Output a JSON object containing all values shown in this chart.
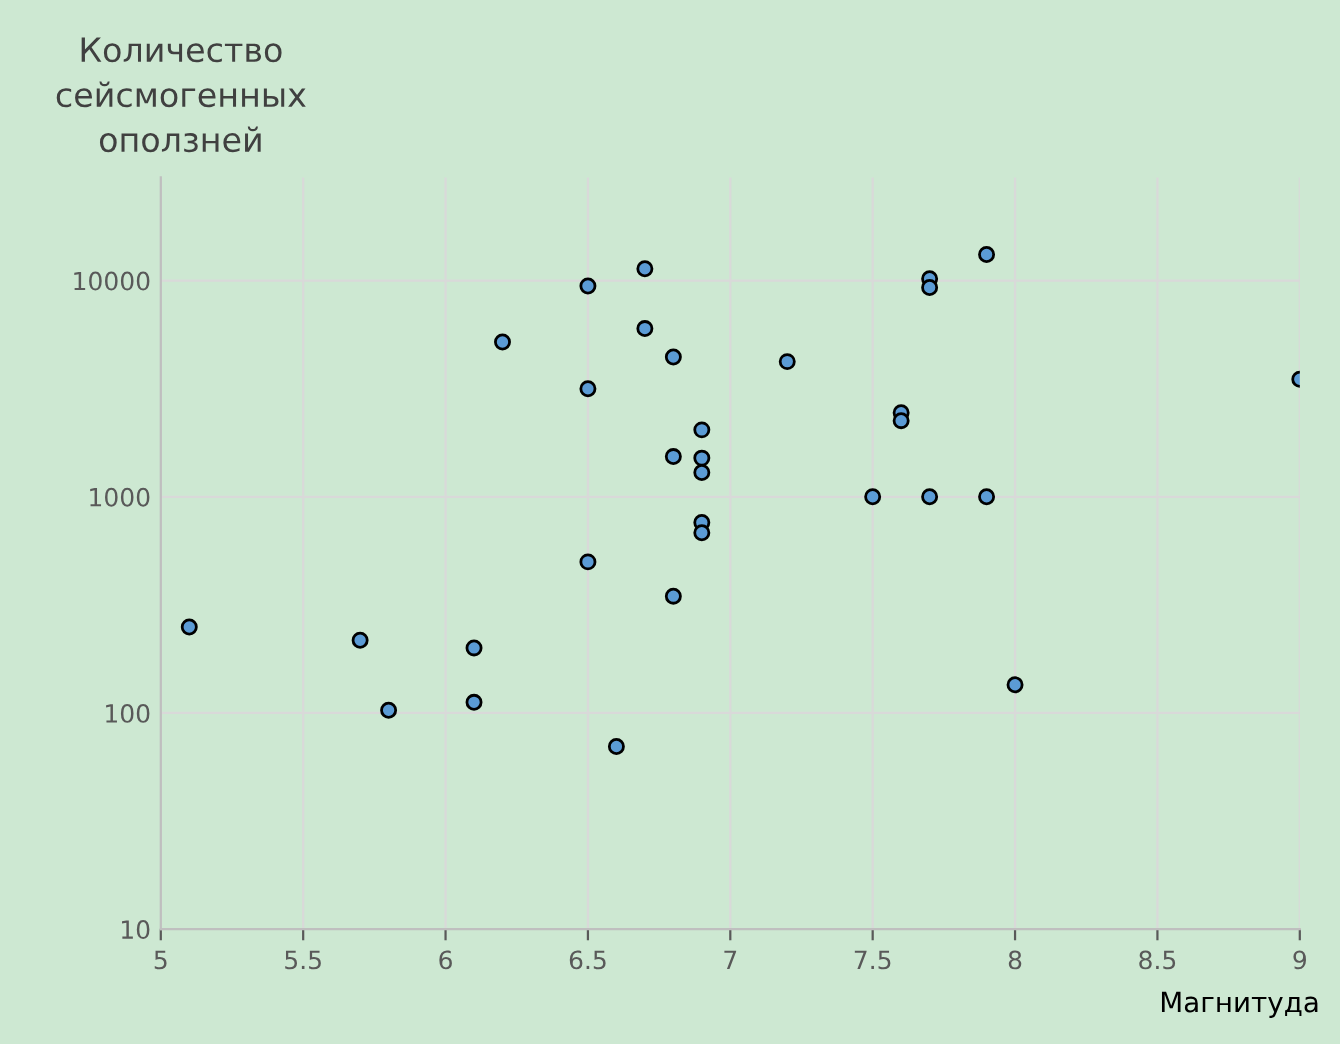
{
  "chart_data": {
    "type": "scatter",
    "xlabel": "Магнитуда",
    "ylabel": "Количество\nсейсмогенных\nоползней",
    "x": [
      5.1,
      5.7,
      5.8,
      6.1,
      6.1,
      6.2,
      6.5,
      6.5,
      6.5,
      6.6,
      6.7,
      6.7,
      6.8,
      6.8,
      6.8,
      6.9,
      6.9,
      6.9,
      6.9,
      6.9,
      7.2,
      7.5,
      7.6,
      7.6,
      7.7,
      7.7,
      7.7,
      7.9,
      7.9,
      8.0,
      9.0
    ],
    "series": [
      {
        "color": "#5b9bd5",
        "values": [
          250,
          217,
          103,
          200,
          112,
          5200,
          9450,
          3160,
          500,
          70,
          11350,
          6000,
          4430,
          1535,
          347,
          2040,
          1510,
          1295,
          760,
          682,
          4220,
          1000,
          2450,
          2250,
          10200,
          9300,
          1000,
          13200,
          1000,
          135,
          3500
        ]
      }
    ],
    "log": "y",
    "xlim": [
      5,
      9
    ],
    "xticks": [
      5,
      5.5,
      6,
      6.5,
      7,
      7.5,
      8,
      8.5,
      9
    ],
    "ylim": [
      10,
      30000
    ],
    "yticks": [
      10,
      100,
      1000,
      10000
    ],
    "grid": true,
    "marker": "circle",
    "legend": false
  }
}
